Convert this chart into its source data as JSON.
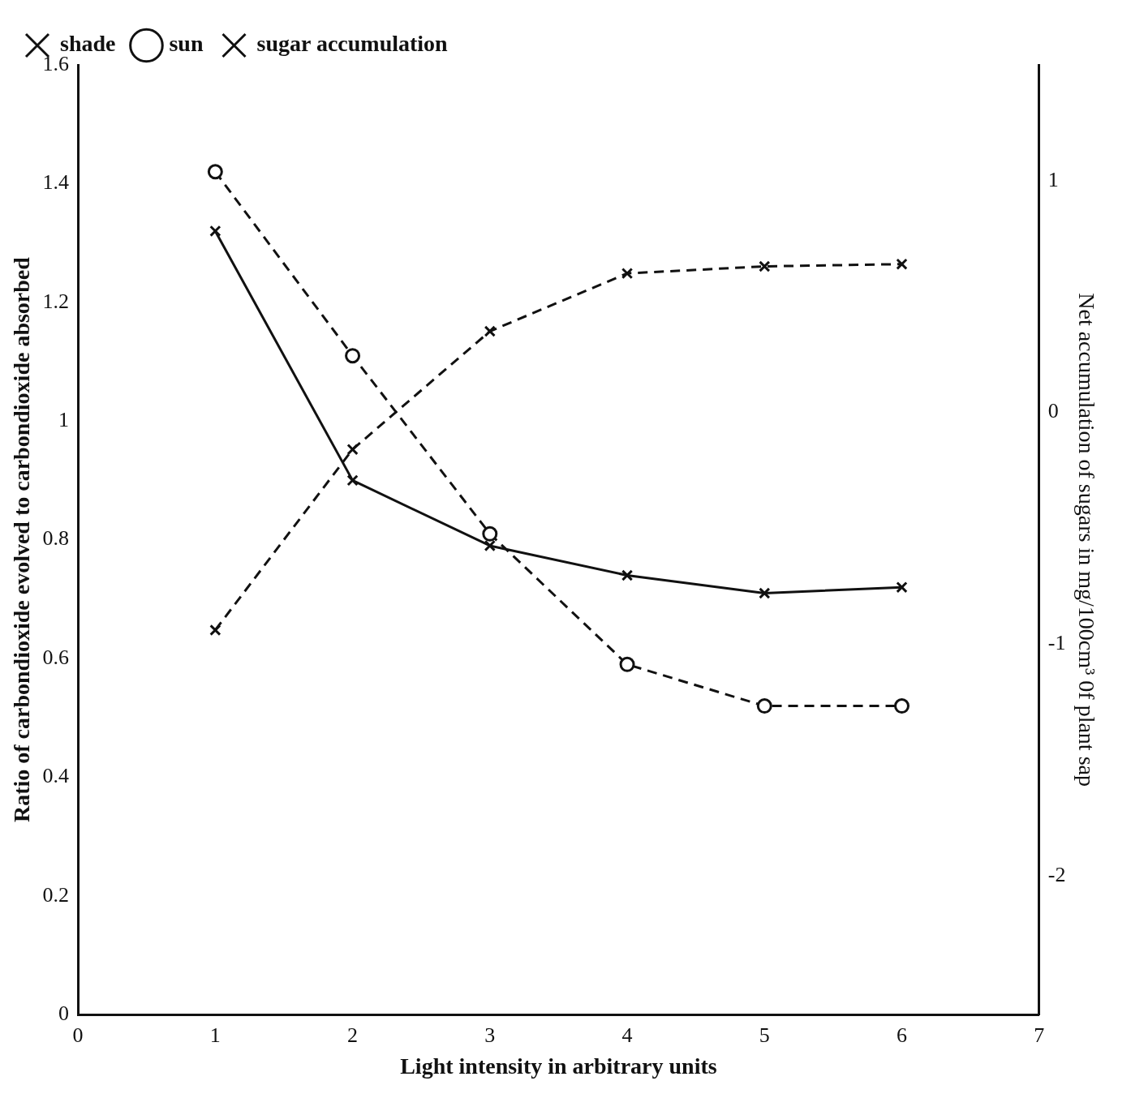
{
  "chart_data": {
    "type": "line",
    "xlabel": "Light intensity in arbitrary units",
    "ylabel": "Ratio of carbondioxide evolved to carbondioxide absorbed",
    "y2label": "Net accumulation of sugars in mg/100cm³ 0f plant sap",
    "x": [
      1,
      2,
      3,
      4,
      5,
      6
    ],
    "series": [
      {
        "name": "shade",
        "color": "#111111",
        "values": [
          1.32,
          0.9,
          0.79,
          0.74,
          0.71,
          0.72
        ],
        "marker": "cross",
        "line_style": "solid"
      },
      {
        "name": "sun",
        "color": "#111111",
        "values": [
          1.42,
          1.11,
          0.81,
          0.59,
          0.52,
          0.52
        ],
        "marker": "circle",
        "line_style": "dashed"
      },
      {
        "name": "sugar accumulation",
        "color": "#111111",
        "values": [
          -0.94,
          -0.16,
          0.35,
          0.6,
          0.63,
          0.64
        ],
        "marker": "cross",
        "line_style": "dashed",
        "axis": "y2"
      }
    ],
    "xlim": [
      0,
      7
    ],
    "xticks": [
      0,
      1,
      2,
      3,
      4,
      5,
      6,
      7
    ],
    "ylim": [
      0,
      1.6
    ],
    "yticks": [
      0,
      0.2,
      0.4,
      0.6,
      0.8,
      1,
      1.2,
      1.4,
      1.6
    ],
    "y2lim": [
      -2.6,
      1.5
    ],
    "y2ticks": [
      -2,
      -1,
      0,
      1
    ],
    "legend": "top left",
    "grid": false
  }
}
